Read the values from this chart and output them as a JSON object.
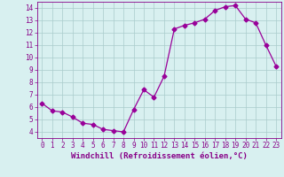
{
  "x": [
    0,
    1,
    2,
    3,
    4,
    5,
    6,
    7,
    8,
    9,
    10,
    11,
    12,
    13,
    14,
    15,
    16,
    17,
    18,
    19,
    20,
    21,
    22,
    23
  ],
  "y": [
    6.3,
    5.7,
    5.6,
    5.2,
    4.7,
    4.6,
    4.2,
    4.1,
    4.0,
    5.8,
    7.4,
    6.8,
    8.5,
    12.3,
    12.6,
    12.8,
    13.1,
    13.8,
    14.1,
    14.2,
    13.1,
    12.8,
    11.0,
    9.3
  ],
  "line_color": "#990099",
  "marker": "D",
  "markersize": 2.5,
  "linewidth": 0.9,
  "bg_color": "#d8f0f0",
  "grid_color": "#aacccc",
  "xlabel": "Windchill (Refroidissement éolien,°C)",
  "xlim": [
    -0.5,
    23.5
  ],
  "ylim": [
    3.5,
    14.5
  ],
  "yticks": [
    4,
    5,
    6,
    7,
    8,
    9,
    10,
    11,
    12,
    13,
    14
  ],
  "xticks": [
    0,
    1,
    2,
    3,
    4,
    5,
    6,
    7,
    8,
    9,
    10,
    11,
    12,
    13,
    14,
    15,
    16,
    17,
    18,
    19,
    20,
    21,
    22,
    23
  ],
  "xlabel_fontsize": 6.5,
  "tick_fontsize": 5.5,
  "axis_color": "#880088"
}
